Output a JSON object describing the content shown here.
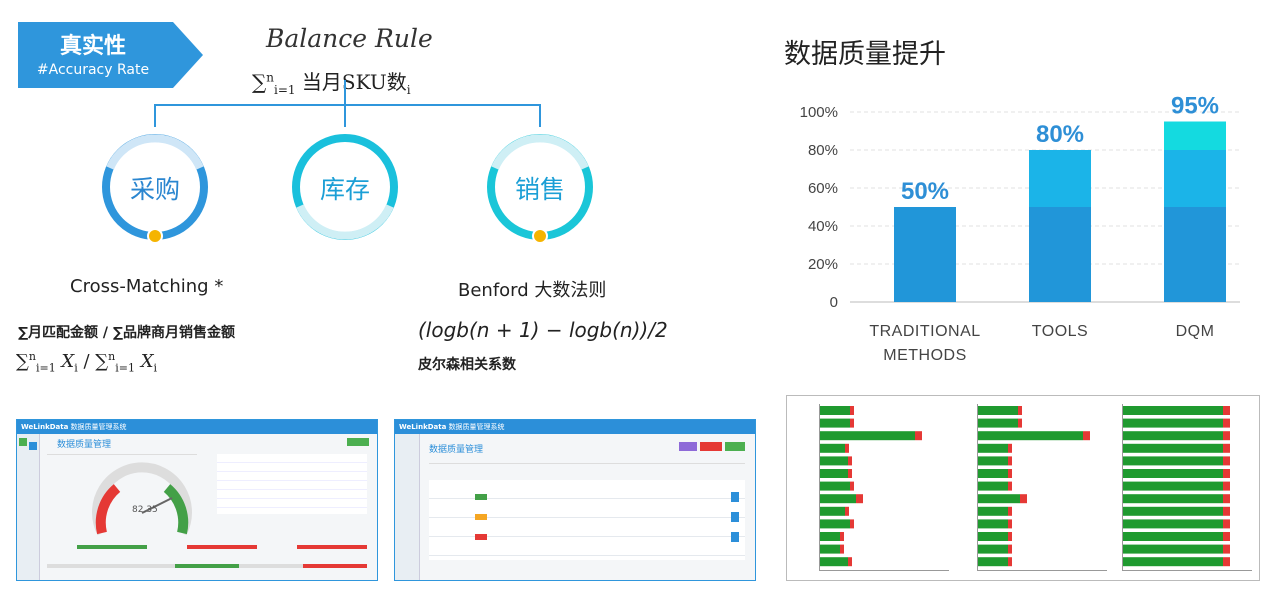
{
  "badge": {
    "title": "真实性",
    "subtitle": "#Accuracy Rate"
  },
  "balance": {
    "title": "Balance Rule",
    "formula_prefix": "∑",
    "formula_sub": "i=1",
    "formula_sup": "n",
    "formula_text": " 当月SKU数",
    "formula_index": "i"
  },
  "circles": [
    {
      "label": "采购"
    },
    {
      "label": "库存"
    },
    {
      "label": "销售"
    }
  ],
  "cross_matching": {
    "title": "Cross-Matching *",
    "desc": "∑月匹配金额 / ∑品牌商月销售金额",
    "formula_left": "∑",
    "formula_sub": "i=1",
    "formula_sup": "n",
    "formula_var": "X",
    "formula_index": "i",
    "formula_sep": " / "
  },
  "benford": {
    "title": "Benford 大数法则",
    "formula": "(logb(n + 1) − logb(n))/2",
    "desc": "皮尔森相关系数"
  },
  "chart_data": {
    "type": "bar",
    "title": "数据质量提升",
    "categories": [
      "TRADITIONAL METHODS",
      "TOOLS",
      "DQM"
    ],
    "category_lines": [
      [
        "TRADITIONAL",
        "METHODS"
      ],
      [
        "TOOLS"
      ],
      [
        "DQM"
      ]
    ],
    "values": [
      50,
      80,
      95
    ],
    "data_labels": [
      "50%",
      "80%",
      "95%"
    ],
    "yticks": [
      "100%",
      "80%",
      "60%",
      "40%",
      "20%",
      "0"
    ],
    "ylim": [
      0,
      100
    ],
    "grid": true,
    "colors": {
      "base": "#2196d9",
      "mid": "#1bb4e8",
      "top": "#14dae0",
      "label": "#2e8fd6"
    }
  },
  "thumbnails": [
    {
      "logo": "WeLinkData",
      "app_title": "数据质量管理系统",
      "page_title": "数据质量管理",
      "gauge_value": "82.35"
    },
    {
      "logo": "WeLinkData",
      "app_title": "数据质量管理系统",
      "page_title": "数据质量管理"
    },
    {}
  ]
}
